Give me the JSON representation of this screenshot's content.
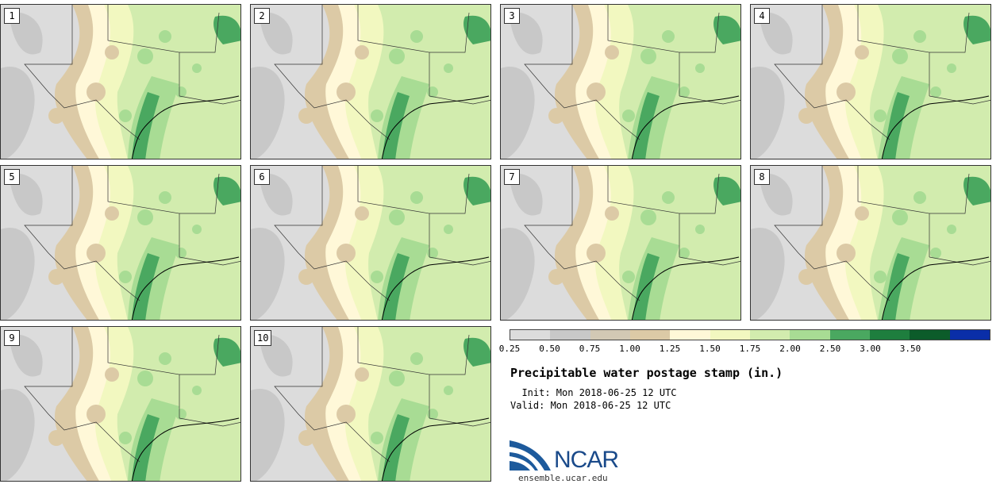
{
  "title": "Precipitable water postage stamp (in.)",
  "init": "  Init: Mon 2018-06-25 12 UTC",
  "valid": "Valid: Mon 2018-06-25 12 UTC",
  "members": [
    "1",
    "2",
    "3",
    "4",
    "5",
    "6",
    "7",
    "8",
    "9",
    "10"
  ],
  "colorbar": {
    "ticks": [
      "0.25",
      "0.50",
      "0.75",
      "1.00",
      "1.25",
      "1.50",
      "1.75",
      "2.00",
      "2.50",
      "3.00",
      "3.50"
    ],
    "colors": [
      "#dcdcdc",
      "#c8c8c8",
      "#d2c8b4",
      "#dccaa6",
      "#fff8d8",
      "#f2f8c0",
      "#d2ecae",
      "#a8dc94",
      "#4aa860",
      "#1e7e3e",
      "#0c5c2a",
      "#0a2ea8"
    ]
  },
  "logo": {
    "name": "NCAR",
    "site": "ensemble.ucar.edu"
  }
}
